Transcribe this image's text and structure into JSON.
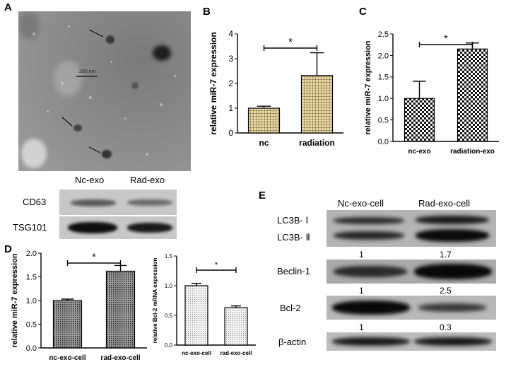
{
  "panels": {
    "A": "A",
    "B": "B",
    "C": "C",
    "D": "D",
    "E": "E"
  },
  "panel_a": {
    "scale_bar": "200 nm",
    "lanes": [
      "Nc-exo",
      "Rad-exo"
    ],
    "rows": [
      "CD63",
      "TSG101"
    ]
  },
  "panel_e": {
    "lanes": [
      "Nc-exo-cell",
      "Rad-exo-cell"
    ],
    "rows": [
      "LC3B- Ⅰ",
      "LC3B- Ⅱ",
      "Beclin-1",
      "Bcl-2",
      "β-actin"
    ],
    "ratios_lc3": [
      "1",
      "1.7"
    ],
    "ratios_beclin": [
      "1",
      "2.5"
    ],
    "ratios_bcl2": [
      "1",
      "0.3"
    ]
  },
  "chart_data": [
    {
      "id": "B",
      "type": "bar",
      "categories": [
        "nc",
        "radiation"
      ],
      "values": [
        1.0,
        2.32
      ],
      "errors": [
        0.08,
        0.92
      ],
      "ylabel": "relative miR-7 expression",
      "ylim": [
        0,
        4
      ],
      "yticks": [
        "0",
        "1",
        "2",
        "3",
        "4"
      ],
      "significance": "*"
    },
    {
      "id": "C",
      "type": "bar",
      "categories": [
        "nc-exo",
        "radiation-exo"
      ],
      "values": [
        1.0,
        2.15
      ],
      "errors": [
        0.4,
        0.14
      ],
      "ylabel": "relative miR-7 expression",
      "ylim": [
        0,
        2.5
      ],
      "yticks": [
        "0.0",
        "0.5",
        "1.0",
        "1.5",
        "2.0",
        "2.5"
      ],
      "significance": "*"
    },
    {
      "id": "D1",
      "type": "bar",
      "categories": [
        "nc-exo-cell",
        "rad-exo-cell"
      ],
      "values": [
        1.0,
        1.62
      ],
      "errors": [
        0.03,
        0.12
      ],
      "ylabel": "relative miR-7 expression",
      "ylim": [
        0,
        2.0
      ],
      "yticks": [
        "0.0",
        "0.5",
        "1.0",
        "1.5",
        "2.0"
      ],
      "significance": "*"
    },
    {
      "id": "D2",
      "type": "bar",
      "categories": [
        "nc-exo-cell",
        "rad-exo-cell"
      ],
      "values": [
        1.0,
        0.63
      ],
      "errors": [
        0.04,
        0.03
      ],
      "ylabel": "relative Bcl-2 mRNA expression",
      "ylim": [
        0,
        1.5
      ],
      "yticks": [
        "0.0",
        "0.5",
        "1.0",
        "1.5"
      ],
      "significance": "*"
    }
  ]
}
